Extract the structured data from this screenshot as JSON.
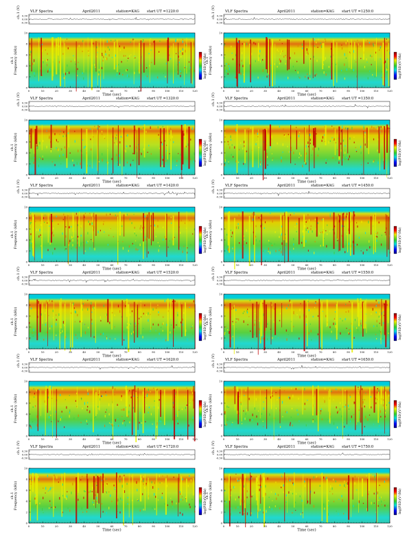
{
  "figure": {
    "panel_title_prefix": "VLF Spectra",
    "date": "April2011",
    "station": "station=KAG",
    "start_label": "start  UT  =",
    "top_axis_label": "ch.1 (V)",
    "top_ticks": [
      "0.30",
      "0.00",
      "-0.30"
    ],
    "freq_axis_label": "Frequency  (kHz)",
    "channel_label": "ch.1",
    "freq_ticks": [
      "0",
      "2",
      "4",
      "6",
      "8",
      "10"
    ],
    "time_axis_label": "Time  (sec)",
    "colorbar_label": "log(PSD)(V²/Hz)",
    "colors": {
      "low": "#0000a0",
      "cyan": "#00e0e0",
      "green": "#40d040",
      "yellow": "#f0f000",
      "red": "#d00000",
      "frame": "#000000"
    }
  },
  "chart_data": [
    {
      "type": "heatmap",
      "title": "VLF Spectra  April2011  station=KAG  start UT =1220:0",
      "start_ut": "1220:0",
      "xlabel": "Time (sec)",
      "ylabel": "Frequency (kHz)",
      "x_ticks": [
        "0",
        "10",
        "20",
        "30",
        "40",
        "50",
        "60",
        "70",
        "80",
        "90",
        "100",
        "110",
        "120"
      ],
      "xlim": [
        0,
        120
      ],
      "ylim": [
        0,
        10
      ]
    },
    {
      "type": "heatmap",
      "title": "VLF Spectra  April2011  station=KAG  start UT =1250:0",
      "start_ut": "1250:0",
      "xlabel": "Time (sec)",
      "ylabel": "Frequency (kHz)",
      "x_ticks": [
        "0",
        "10",
        "20",
        "30",
        "40",
        "50",
        "60",
        "70",
        "80",
        "90",
        "100",
        "110",
        "120"
      ],
      "xlim": [
        0,
        120
      ],
      "ylim": [
        0,
        10
      ]
    },
    {
      "type": "heatmap",
      "title": "VLF Spectra  April2011  station=KAG  start UT =1320:0",
      "start_ut": "1320:0",
      "xlabel": "Time (sec)",
      "ylabel": "Frequency (kHz)",
      "x_ticks": [
        "0",
        "10",
        "20",
        "30",
        "40",
        "50",
        "60",
        "70",
        "80",
        "90",
        "100",
        "110",
        "120"
      ],
      "xlim": [
        0,
        120
      ],
      "ylim": [
        0,
        10
      ]
    },
    {
      "type": "heatmap",
      "title": "VLF Spectra  April2011  station=KAG  start UT =1350:0",
      "start_ut": "1350:0",
      "xlabel": "Time (sec)",
      "ylabel": "Frequency (kHz)",
      "x_ticks": [
        "0",
        "10",
        "20",
        "30",
        "40",
        "50",
        "60",
        "70",
        "80",
        "90",
        "100",
        "110",
        "120"
      ],
      "xlim": [
        0,
        120
      ],
      "ylim": [
        0,
        10
      ]
    },
    {
      "type": "heatmap",
      "title": "VLF Spectra  April2011  station=KAG  start UT =1420:0",
      "start_ut": "1420:0",
      "xlabel": "Time (sec)",
      "ylabel": "Frequency (kHz)",
      "x_ticks": [
        "0",
        "10",
        "20",
        "30",
        "40",
        "50",
        "60",
        "70",
        "80",
        "90",
        "100",
        "110",
        "120"
      ],
      "xlim": [
        0,
        120
      ],
      "ylim": [
        0,
        10
      ]
    },
    {
      "type": "heatmap",
      "title": "VLF Spectra  April2011  station=KAG  start UT =1450:0",
      "start_ut": "1450:0",
      "xlabel": "Time (sec)",
      "ylabel": "Frequency (kHz)",
      "x_ticks": [
        "0",
        "10",
        "20",
        "30",
        "40",
        "50",
        "60",
        "70",
        "80",
        "90",
        "100",
        "110",
        "120"
      ],
      "xlim": [
        0,
        120
      ],
      "ylim": [
        0,
        10
      ]
    },
    {
      "type": "heatmap",
      "title": "VLF Spectra  April2011  station=KAG  start UT =1520:0",
      "start_ut": "1520:0",
      "xlabel": "Time (sec)",
      "ylabel": "Frequency (kHz)",
      "x_ticks": [
        "0",
        "10",
        "20",
        "30",
        "40",
        "50",
        "60",
        "70",
        "80",
        "90",
        "100",
        "110",
        "120"
      ],
      "xlim": [
        0,
        120
      ],
      "ylim": [
        0,
        10
      ]
    },
    {
      "type": "heatmap",
      "title": "VLF Spectra  April2011  station=KAG  start UT =1550:0",
      "start_ut": "1550:0",
      "xlabel": "Time (sec)",
      "ylabel": "Frequency (kHz)",
      "x_ticks": [
        "0",
        "10",
        "20",
        "30",
        "40",
        "50",
        "60",
        "70",
        "80",
        "90",
        "100",
        "110",
        "120"
      ],
      "xlim": [
        0,
        120
      ],
      "ylim": [
        0,
        10
      ]
    },
    {
      "type": "heatmap",
      "title": "VLF Spectra  April2011  station=KAG  start UT =1620:0",
      "start_ut": "1620:0",
      "xlabel": "Time (sec)",
      "ylabel": "Frequency (kHz)",
      "x_ticks": [
        "0",
        "10",
        "20",
        "30",
        "40",
        "50",
        "60",
        "70",
        "80",
        "90",
        "100",
        "110",
        "120"
      ],
      "xlim": [
        0,
        120
      ],
      "ylim": [
        0,
        10
      ]
    },
    {
      "type": "heatmap",
      "title": "VLF Spectra  April2011  station=KAG  start UT =1650:0",
      "start_ut": "1650:0",
      "xlabel": "Time (sec)",
      "ylabel": "Frequency (kHz)",
      "x_ticks": [
        "0",
        "10",
        "20",
        "30",
        "40",
        "50",
        "60",
        "70",
        "80",
        "90",
        "100",
        "110",
        "120"
      ],
      "xlim": [
        0,
        120
      ],
      "ylim": [
        0,
        10
      ]
    },
    {
      "type": "heatmap",
      "title": "VLF Spectra  April2011  station=KAG  start UT =1720:0",
      "start_ut": "1720:0",
      "xlabel": "Time (sec)",
      "ylabel": "Frequency (kHz)",
      "x_ticks": [
        "0",
        "10",
        "20",
        "30",
        "40",
        "50",
        "60",
        "70",
        "80",
        "90",
        "100",
        "110",
        "120"
      ],
      "xlim": [
        0,
        120
      ],
      "ylim": [
        0,
        10
      ]
    },
    {
      "type": "heatmap",
      "title": "VLF Spectra  April2011  station=KAG  start UT =1750:0",
      "start_ut": "1750:0",
      "xlabel": "Time (sec)",
      "ylabel": "Frequency (kHz)",
      "x_ticks": [
        "0",
        "10",
        "20",
        "30",
        "40",
        "50",
        "60",
        "70",
        "80",
        "90",
        "100",
        "110",
        "120"
      ],
      "xlim": [
        0,
        120
      ],
      "ylim": [
        0,
        10
      ]
    }
  ]
}
